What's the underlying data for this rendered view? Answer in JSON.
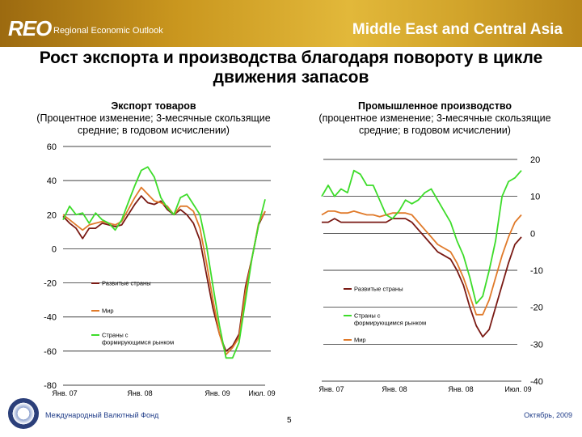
{
  "header": {
    "brand": "REO",
    "brand_sub": "Regional Economic Outlook",
    "region": "Middle East and Central Asia"
  },
  "title": "Рост экспорта и производства благодаря повороту в цикле движения запасов",
  "colors": {
    "advanced": "#7a1a14",
    "world": "#e07a2a",
    "emerging": "#3ddc2a",
    "banner": "#c9961e"
  },
  "chart_data": [
    {
      "type": "line",
      "title": "Экспорт товаров",
      "subtitle": "(Процентное изменение; 3-месячные скользящие средние; в годовом исчислении)",
      "ylim": [
        -80,
        60
      ],
      "yticks": [
        "60",
        "40",
        "20",
        "0",
        "-20",
        "-40",
        "-60",
        "-80"
      ],
      "x_tick_labels": [
        "Янв. 07",
        "Янв. 08",
        "Янв. 09",
        "Июл. 09"
      ],
      "x_range": [
        0,
        31
      ],
      "legend": [
        "Развитые страны",
        "Мир",
        "Страны с формирующимся рынком"
      ],
      "series": [
        {
          "name": "Развитые страны",
          "x": [
            0,
            1,
            2,
            3,
            4,
            5,
            6,
            7,
            8,
            9,
            10,
            11,
            12,
            13,
            14,
            15,
            16,
            17,
            18,
            19,
            20,
            21,
            22,
            23,
            24,
            25,
            26,
            27,
            28,
            29,
            30,
            31
          ],
          "values": [
            19,
            15,
            12,
            6,
            12,
            12,
            15,
            14,
            13,
            14,
            20,
            26,
            31,
            27,
            26,
            28,
            23,
            20,
            23,
            20,
            15,
            5,
            -15,
            -35,
            -50,
            -60,
            -57,
            -50,
            -22,
            -5,
            14,
            22
          ]
        },
        {
          "name": "Мир",
          "x": [
            0,
            1,
            2,
            3,
            4,
            5,
            6,
            7,
            8,
            9,
            10,
            11,
            12,
            13,
            14,
            15,
            16,
            17,
            18,
            19,
            20,
            21,
            22,
            23,
            24,
            25,
            26,
            27,
            28,
            29,
            30,
            31
          ],
          "values": [
            20,
            17,
            14,
            11,
            14,
            15,
            16,
            15,
            14,
            16,
            23,
            30,
            36,
            32,
            28,
            27,
            25,
            20,
            25,
            25,
            22,
            12,
            -8,
            -30,
            -50,
            -62,
            -58,
            -52,
            -25,
            -5,
            15,
            22
          ]
        },
        {
          "name": "Страны с формирующимся рынком",
          "x": [
            0,
            1,
            2,
            3,
            4,
            5,
            6,
            7,
            8,
            9,
            10,
            11,
            12,
            13,
            14,
            15,
            16,
            17,
            18,
            19,
            20,
            21,
            22,
            23,
            24,
            25,
            26,
            27,
            28,
            29,
            30,
            31
          ],
          "values": [
            17,
            25,
            20,
            21,
            15,
            21,
            17,
            15,
            11,
            17,
            27,
            37,
            46,
            48,
            42,
            30,
            24,
            20,
            30,
            32,
            26,
            20,
            2,
            -22,
            -45,
            -64,
            -64,
            -55,
            -30,
            -5,
            14,
            29
          ]
        }
      ]
    },
    {
      "type": "line",
      "title": "Промышленное производство",
      "subtitle": "(процентное изменение; 3-месячные скользящие средние; в годовом исчислении)",
      "ylim": [
        -40,
        20
      ],
      "yticks": [
        "20",
        "10",
        "0",
        "-10",
        "-20",
        "-30",
        "-40"
      ],
      "x_tick_labels": [
        "Янв. 07",
        "Янв. 08",
        "Янв. 08",
        "Июл. 09"
      ],
      "x_range": [
        0,
        31
      ],
      "legend": [
        "Развитые страны",
        "Страны с формирующимся рынком",
        "Мир"
      ],
      "series": [
        {
          "name": "Развитые страны",
          "x": [
            0,
            1,
            2,
            3,
            4,
            5,
            6,
            7,
            8,
            9,
            10,
            11,
            12,
            13,
            14,
            15,
            16,
            17,
            18,
            19,
            20,
            21,
            22,
            23,
            24,
            25,
            26,
            27,
            28,
            29,
            30,
            31
          ],
          "values": [
            3,
            3,
            4,
            3,
            3,
            3,
            3,
            3,
            3,
            3,
            3,
            4,
            4,
            4,
            3,
            1,
            -1,
            -3,
            -5,
            -6,
            -7,
            -10,
            -14,
            -20,
            -25,
            -28,
            -26,
            -20,
            -14,
            -8,
            -3,
            -1
          ]
        },
        {
          "name": "Мир",
          "x": [
            0,
            1,
            2,
            3,
            4,
            5,
            6,
            7,
            8,
            9,
            10,
            11,
            12,
            13,
            14,
            15,
            16,
            17,
            18,
            19,
            20,
            21,
            22,
            23,
            24,
            25,
            26,
            27,
            28,
            29,
            30,
            31
          ],
          "values": [
            5,
            6,
            6,
            5.5,
            5.5,
            6,
            5.5,
            5,
            5,
            4.5,
            5,
            5.5,
            5.5,
            5.5,
            5,
            3,
            1,
            -1,
            -3,
            -4,
            -5,
            -8,
            -12,
            -17,
            -22,
            -22,
            -18,
            -12,
            -6,
            -1,
            3,
            5
          ]
        },
        {
          "name": "Страны с формирующимся рынком",
          "x": [
            0,
            1,
            2,
            3,
            4,
            5,
            6,
            7,
            8,
            9,
            10,
            11,
            12,
            13,
            14,
            15,
            16,
            17,
            18,
            19,
            20,
            21,
            22,
            23,
            24,
            25,
            26,
            27,
            28,
            29,
            30,
            31
          ],
          "values": [
            10,
            13,
            10,
            12,
            11,
            17,
            16,
            13,
            13,
            9,
            5,
            4,
            6,
            9,
            8,
            9,
            11,
            12,
            9,
            6,
            3,
            -2,
            -6,
            -12,
            -19,
            -17,
            -10,
            -2,
            10,
            14,
            15,
            17
          ]
        }
      ]
    }
  ],
  "footer": {
    "org": "Международный Валютный Фонд",
    "page": "5",
    "date": "Октябрь, 2009"
  }
}
